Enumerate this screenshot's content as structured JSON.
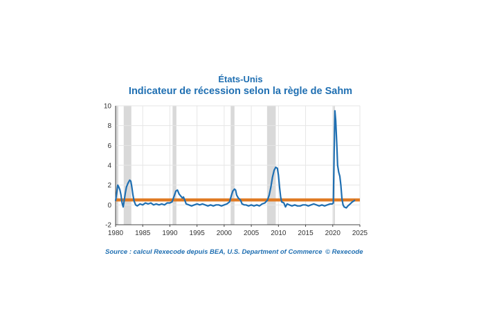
{
  "header": {
    "country": "États-Unis",
    "title": "Indicateur de récession selon la règle de Sahm"
  },
  "footer": {
    "source": "Source : calcul Rexecode depuis BEA, U.S. Department of Commerce",
    "copyright": "© Rexecode"
  },
  "colors": {
    "line": "#1f6fb2",
    "threshold": "#e07b24",
    "recession": "#d9d9d9",
    "text": "#1f6fb2"
  },
  "chart_data": {
    "type": "line",
    "xlim": [
      1980,
      2025
    ],
    "ylim": [
      -2,
      10
    ],
    "x_ticks": [
      1980,
      1985,
      1990,
      1995,
      2000,
      2005,
      2010,
      2015,
      2020,
      2025
    ],
    "y_ticks": [
      -2,
      0,
      2,
      4,
      6,
      8,
      10
    ],
    "grid": true,
    "recessions": [
      [
        1980.0,
        1980.5
      ],
      [
        1981.5,
        1982.9
      ],
      [
        1990.5,
        1991.2
      ],
      [
        2001.2,
        2001.9
      ],
      [
        2007.9,
        2009.5
      ],
      [
        2020.1,
        2020.4
      ]
    ],
    "threshold": 0.5,
    "series": [
      {
        "points": [
          [
            1980.0,
            0.4
          ],
          [
            1980.2,
            1.2
          ],
          [
            1980.4,
            2.0
          ],
          [
            1980.6,
            1.8
          ],
          [
            1980.8,
            1.5
          ],
          [
            1981.0,
            1.0
          ],
          [
            1981.2,
            0.2
          ],
          [
            1981.4,
            -0.2
          ],
          [
            1981.6,
            0.5
          ],
          [
            1981.8,
            1.2
          ],
          [
            1982.0,
            1.8
          ],
          [
            1982.3,
            2.2
          ],
          [
            1982.6,
            2.5
          ],
          [
            1982.8,
            2.4
          ],
          [
            1983.0,
            1.8
          ],
          [
            1983.2,
            1.0
          ],
          [
            1983.4,
            0.4
          ],
          [
            1983.7,
            0.0
          ],
          [
            1984.0,
            -0.1
          ],
          [
            1984.5,
            0.1
          ],
          [
            1985.0,
            0.0
          ],
          [
            1985.5,
            0.2
          ],
          [
            1986.0,
            0.1
          ],
          [
            1986.5,
            0.2
          ],
          [
            1987.0,
            0.0
          ],
          [
            1987.5,
            0.1
          ],
          [
            1988.0,
            0.0
          ],
          [
            1988.5,
            0.1
          ],
          [
            1989.0,
            0.0
          ],
          [
            1989.5,
            0.2
          ],
          [
            1990.0,
            0.2
          ],
          [
            1990.4,
            0.3
          ],
          [
            1990.8,
            0.9
          ],
          [
            1991.1,
            1.4
          ],
          [
            1991.4,
            1.5
          ],
          [
            1991.7,
            1.1
          ],
          [
            1992.0,
            0.9
          ],
          [
            1992.3,
            0.7
          ],
          [
            1992.5,
            0.8
          ],
          [
            1992.8,
            0.4
          ],
          [
            1993.0,
            0.1
          ],
          [
            1993.5,
            0.0
          ],
          [
            1994.0,
            -0.1
          ],
          [
            1994.5,
            0.0
          ],
          [
            1995.0,
            0.1
          ],
          [
            1995.5,
            0.0
          ],
          [
            1996.0,
            0.1
          ],
          [
            1996.5,
            0.0
          ],
          [
            1997.0,
            -0.1
          ],
          [
            1997.5,
            0.0
          ],
          [
            1998.0,
            -0.1
          ],
          [
            1998.5,
            0.0
          ],
          [
            1999.0,
            0.0
          ],
          [
            1999.5,
            -0.1
          ],
          [
            2000.0,
            0.0
          ],
          [
            2000.5,
            0.1
          ],
          [
            2001.0,
            0.3
          ],
          [
            2001.3,
            0.9
          ],
          [
            2001.6,
            1.4
          ],
          [
            2001.9,
            1.6
          ],
          [
            2002.1,
            1.5
          ],
          [
            2002.3,
            1.0
          ],
          [
            2002.6,
            0.7
          ],
          [
            2003.0,
            0.5
          ],
          [
            2003.3,
            0.1
          ],
          [
            2003.7,
            0.0
          ],
          [
            2004.0,
            0.0
          ],
          [
            2004.5,
            -0.1
          ],
          [
            2005.0,
            0.0
          ],
          [
            2005.5,
            -0.1
          ],
          [
            2006.0,
            0.0
          ],
          [
            2006.5,
            -0.1
          ],
          [
            2007.0,
            0.1
          ],
          [
            2007.5,
            0.2
          ],
          [
            2008.0,
            0.5
          ],
          [
            2008.3,
            1.0
          ],
          [
            2008.6,
            1.8
          ],
          [
            2008.9,
            2.8
          ],
          [
            2009.2,
            3.5
          ],
          [
            2009.5,
            3.8
          ],
          [
            2009.8,
            3.7
          ],
          [
            2010.0,
            3.0
          ],
          [
            2010.2,
            1.8
          ],
          [
            2010.4,
            0.8
          ],
          [
            2010.6,
            0.3
          ],
          [
            2011.0,
            0.2
          ],
          [
            2011.3,
            -0.2
          ],
          [
            2011.6,
            0.1
          ],
          [
            2012.0,
            0.0
          ],
          [
            2012.5,
            -0.1
          ],
          [
            2013.0,
            0.0
          ],
          [
            2013.5,
            -0.1
          ],
          [
            2014.0,
            -0.1
          ],
          [
            2014.5,
            0.0
          ],
          [
            2015.0,
            0.0
          ],
          [
            2015.5,
            -0.1
          ],
          [
            2016.0,
            0.0
          ],
          [
            2016.5,
            0.1
          ],
          [
            2017.0,
            0.0
          ],
          [
            2017.5,
            -0.1
          ],
          [
            2018.0,
            0.0
          ],
          [
            2018.5,
            -0.1
          ],
          [
            2019.0,
            0.0
          ],
          [
            2019.5,
            0.1
          ],
          [
            2019.9,
            0.1
          ],
          [
            2020.1,
            0.2
          ],
          [
            2020.25,
            5.0
          ],
          [
            2020.4,
            9.5
          ],
          [
            2020.55,
            8.5
          ],
          [
            2020.75,
            6.0
          ],
          [
            2020.9,
            4.0
          ],
          [
            2021.1,
            3.3
          ],
          [
            2021.3,
            2.9
          ],
          [
            2021.5,
            2.0
          ],
          [
            2021.7,
            0.6
          ],
          [
            2021.9,
            0.0
          ],
          [
            2022.1,
            -0.2
          ],
          [
            2022.5,
            -0.3
          ],
          [
            2022.8,
            -0.1
          ],
          [
            2023.2,
            0.1
          ],
          [
            2023.6,
            0.3
          ],
          [
            2023.9,
            0.4
          ],
          [
            2024.1,
            0.5
          ]
        ]
      }
    ]
  }
}
